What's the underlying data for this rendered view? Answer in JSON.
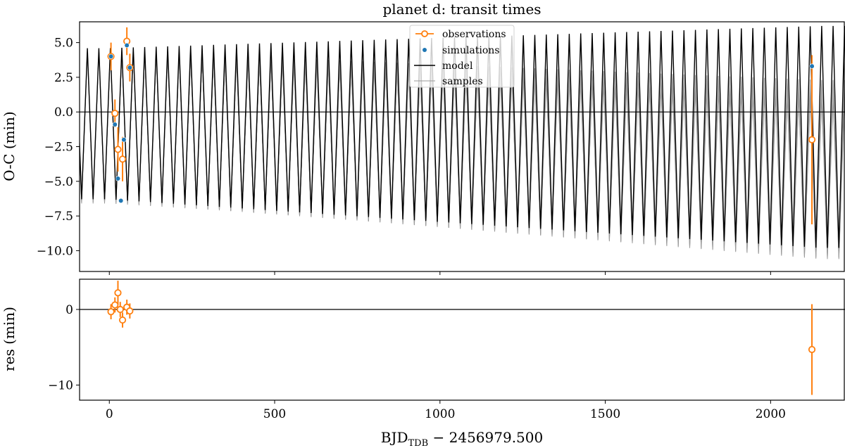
{
  "chart_data": {
    "type": "scatter",
    "title": "planet d: transit times",
    "xlabel_main": "BJD",
    "xlabel_sub": "TDB",
    "xlabel_rest": " − 2456979.500",
    "xlim": [
      -90,
      2225
    ],
    "panels": [
      {
        "id": "oc",
        "ylabel": "O-C (min)",
        "ylim": [
          -11.5,
          6.5
        ],
        "yticks": [
          5.0,
          2.5,
          0.0,
          -2.5,
          -5.0,
          -7.5,
          -10.0
        ],
        "ytick_labels": [
          "5.0",
          "2.5",
          "0.0",
          "−2.5",
          "−5.0",
          "−7.5",
          "−10.0"
        ],
        "period": 34.7,
        "phase": 3,
        "model": {
          "max0": 4.6,
          "max1": 6.2,
          "min0": -6.3,
          "min1": -9.8
        },
        "samples": [
          {
            "max0": 4.5,
            "max1": 1.3,
            "min0": -6.4,
            "min1": -10.5
          },
          {
            "max0": 4.5,
            "max1": 1.6,
            "min0": -6.5,
            "min1": -10.3
          },
          {
            "max0": 4.4,
            "max1": 2.0,
            "min0": -6.5,
            "min1": -10.0
          },
          {
            "max0": 4.4,
            "max1": 2.3,
            "min0": -6.6,
            "min1": -9.8
          },
          {
            "max0": 4.5,
            "max1": 1.0,
            "min0": -6.3,
            "min1": -10.6
          }
        ],
        "observations": [
          {
            "x": 5,
            "y": 4.0,
            "err": 1.0
          },
          {
            "x": 17,
            "y": -0.1,
            "err": 1.0
          },
          {
            "x": 26,
            "y": -2.7,
            "err": 1.6
          },
          {
            "x": 40,
            "y": -3.4,
            "err": 1.6
          },
          {
            "x": 53,
            "y": 5.1,
            "err": 1.0
          },
          {
            "x": 62,
            "y": 3.2,
            "err": 1.0
          },
          {
            "x": 2125,
            "y": -2.0,
            "err": 6.1
          }
        ],
        "simulations": [
          {
            "x": 5,
            "y": 4.0
          },
          {
            "x": 17,
            "y": -0.9
          },
          {
            "x": 26,
            "y": -4.8
          },
          {
            "x": 35,
            "y": -6.4
          },
          {
            "x": 44,
            "y": -2.0
          },
          {
            "x": 53,
            "y": 4.8
          },
          {
            "x": 62,
            "y": 3.2
          },
          {
            "x": 2125,
            "y": 3.3
          }
        ]
      },
      {
        "id": "res",
        "ylabel": "res (min)",
        "ylim": [
          -12,
          4
        ],
        "yticks": [
          0,
          -10
        ],
        "ytick_labels": [
          "0",
          "−10"
        ],
        "residuals": [
          {
            "x": 5,
            "y": -0.3,
            "err": 1.0
          },
          {
            "x": 17,
            "y": 0.6,
            "err": 1.0
          },
          {
            "x": 26,
            "y": 2.2,
            "err": 1.6
          },
          {
            "x": 33,
            "y": 0.0,
            "err": 1.0
          },
          {
            "x": 40,
            "y": -1.4,
            "err": 1.0
          },
          {
            "x": 53,
            "y": 0.3,
            "err": 1.0
          },
          {
            "x": 62,
            "y": -0.2,
            "err": 1.0
          },
          {
            "x": 2125,
            "y": -5.3,
            "err": 6.0
          }
        ]
      }
    ],
    "xticks": [
      0,
      500,
      1000,
      1500,
      2000
    ],
    "xtick_labels": [
      "0",
      "500",
      "1000",
      "1500",
      "2000"
    ],
    "legend": {
      "position": "top-center",
      "entries": [
        "observations",
        "simulations",
        "model",
        "samples"
      ]
    },
    "colors": {
      "observations": "#ff7f0e",
      "simulations": "#1f77b4",
      "model": "#000000",
      "samples": "#9a9a9a",
      "zero_line": "#000000"
    }
  }
}
